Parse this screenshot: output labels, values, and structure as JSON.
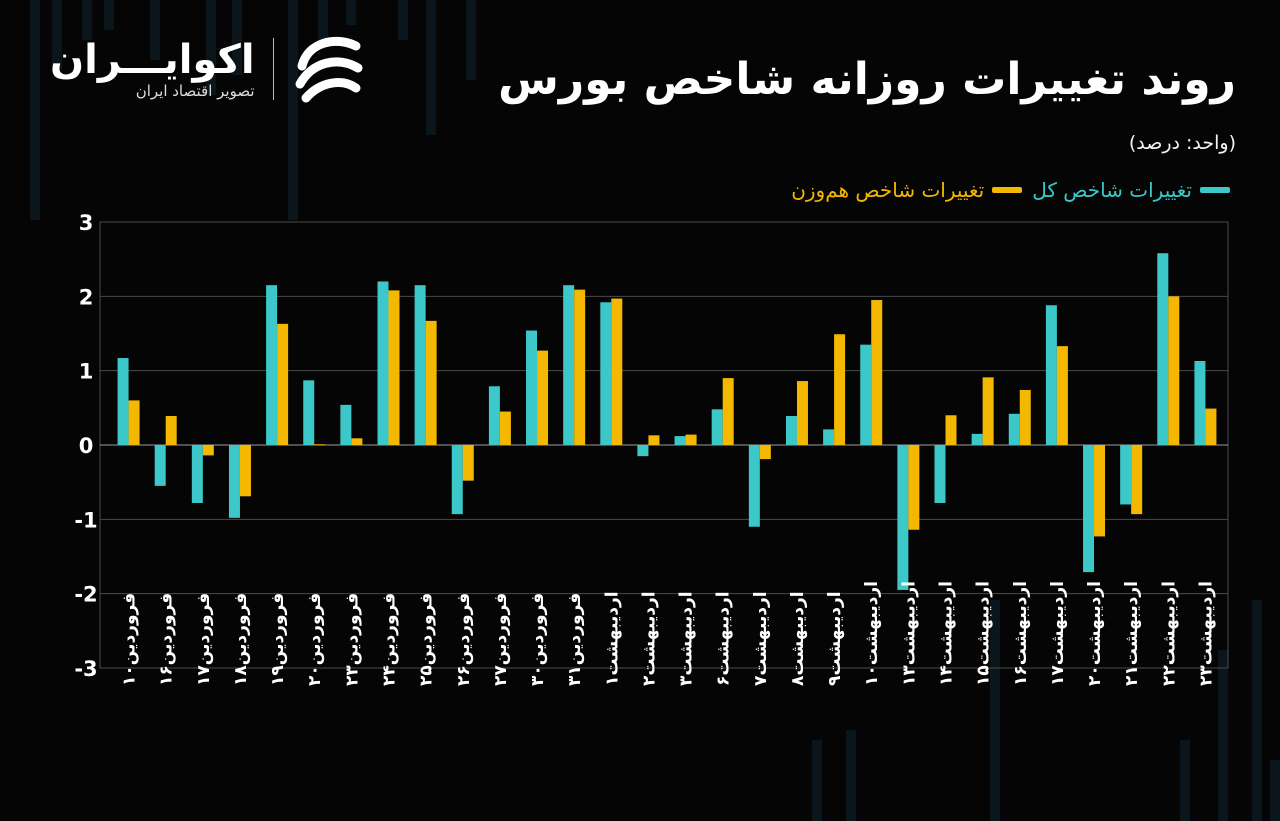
{
  "header": {
    "title": "روند تغییرات روزانه شاخص بورس",
    "unit": "(واحد: درصد)"
  },
  "logo": {
    "name": "اکوایـــران",
    "subtitle": "تصویر اقتصاد ایران",
    "icon": "ecoiran-swirl-icon"
  },
  "colors": {
    "main_index": "#3cc8c8",
    "equal_weight": "#f5b800",
    "background": "#050505",
    "grid": "#4a4a4a"
  },
  "chart_data": {
    "type": "bar",
    "title": "روند تغییرات روزانه شاخص بورس",
    "ylabel": "درصد",
    "ylim": [
      -3,
      3
    ],
    "yticks": [
      3,
      2,
      1,
      0,
      -1,
      -2,
      -3
    ],
    "ytick_labels": [
      "3",
      "2",
      "1",
      "0",
      "-1",
      "-2",
      "-3"
    ],
    "grid": true,
    "legend": "top-right",
    "categories": [
      "فروردین۱۰",
      "فروردین۱۶",
      "فروردین۱۷",
      "فروردین۱۸",
      "فروردین۱۹",
      "فروردین۲۰",
      "فروردین۲۳",
      "فروردین۲۴",
      "فروردین۲۵",
      "فروردین۲۶",
      "فروردین۲۷",
      "فروردین۳۰",
      "فروردین۳۱",
      "اردیبهشت۱",
      "اردیبهشت۲",
      "اردیبهشت۳",
      "اردیبهشت۶",
      "اردیبهشت۷",
      "اردیبهشت۸",
      "اردیبهشت۹",
      "اردیبهشت۱۰",
      "اردیبهشت۱۳",
      "اردیبهشت۱۴",
      "اردیبهشت۱۵",
      "اردیبهشت۱۶",
      "اردیبهشت۱۷",
      "اردیبهشت۲۰",
      "اردیبهشت۲۱",
      "اردیبهشت۲۲",
      "اردیبهشت۲۳"
    ],
    "series": [
      {
        "name": "تغییرات شاخص کل",
        "values": [
          1.17,
          -0.55,
          -0.78,
          -0.98,
          2.15,
          0.87,
          0.54,
          2.2,
          2.15,
          -0.93,
          0.79,
          1.54,
          2.15,
          1.92,
          -0.15,
          0.12,
          0.48,
          -1.1,
          0.39,
          0.21,
          1.35,
          -1.95,
          -0.78,
          0.15,
          0.42,
          1.88,
          -1.71,
          -0.8,
          2.58,
          1.13
        ]
      },
      {
        "name": "تغییرات شاخص هم‌وزن",
        "values": [
          0.6,
          0.39,
          -0.14,
          -0.69,
          1.63,
          0.01,
          0.09,
          2.08,
          1.67,
          -0.48,
          0.45,
          1.27,
          2.09,
          1.97,
          0.13,
          0.14,
          0.9,
          -0.19,
          0.86,
          1.49,
          1.95,
          -1.14,
          0.4,
          0.91,
          0.74,
          1.33,
          -1.23,
          -0.93,
          2.0,
          0.49
        ]
      }
    ]
  }
}
